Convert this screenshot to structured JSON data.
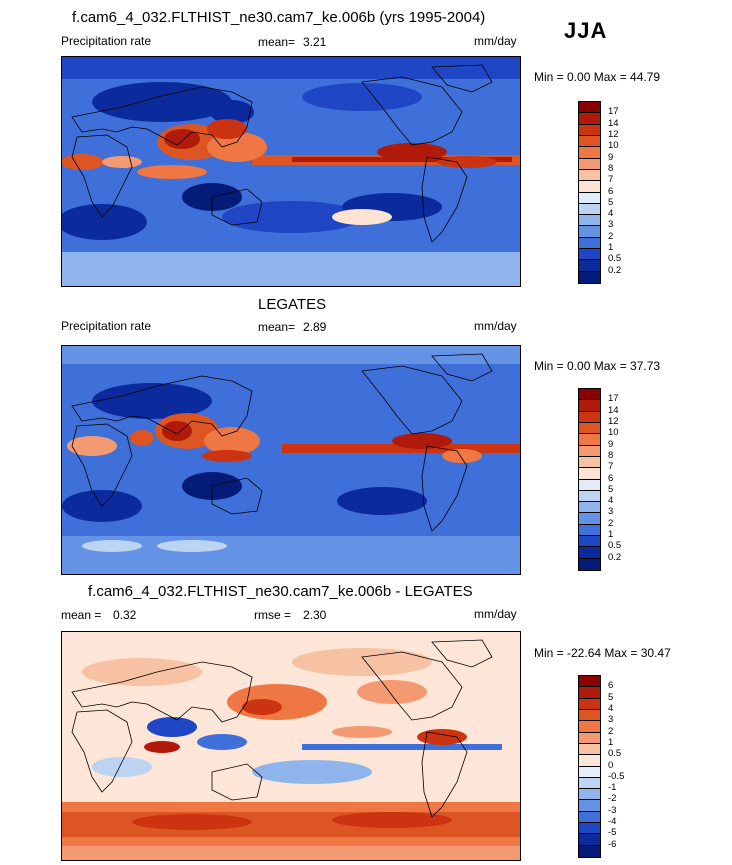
{
  "season": "JJA",
  "panels": [
    {
      "title": "f.cam6_4_032.FLTHIST_ne30.cam7_ke.006b (yrs 1995-2004)",
      "left_label": "Precipitation rate",
      "stat_label": "mean=",
      "stat_value": "3.21",
      "units": "mm/day",
      "minmax": "Min =   0.00 Max =  44.79",
      "kind": "abs",
      "ticks": [
        "17",
        "14",
        "12",
        "10",
        "9",
        "8",
        "7",
        "6",
        "5",
        "4",
        "3",
        "2",
        "1",
        "0.5",
        "0.2"
      ]
    },
    {
      "title": "LEGATES",
      "left_label": "Precipitation rate",
      "stat_label": "mean=",
      "stat_value": "2.89",
      "units": "mm/day",
      "minmax": "Min =   0.00 Max =  37.73",
      "kind": "abs",
      "ticks": [
        "17",
        "14",
        "12",
        "10",
        "9",
        "8",
        "7",
        "6",
        "5",
        "4",
        "3",
        "2",
        "1",
        "0.5",
        "0.2"
      ]
    },
    {
      "title": "f.cam6_4_032.FLTHIST_ne30.cam7_ke.006b - LEGATES",
      "left_label": "mean =",
      "left_value": "0.32",
      "stat_label": "rmse =",
      "stat_value": "2.30",
      "units": "mm/day",
      "minmax": "Min = -22.64 Max =  30.47",
      "kind": "diff",
      "ticks": [
        "6",
        "5",
        "4",
        "3",
        "2",
        "1",
        "0.5",
        "0",
        "-0.5",
        "-1",
        "-2",
        "-3",
        "-4",
        "-5",
        "-6"
      ]
    }
  ],
  "colors": {
    "abs": [
      "#8b0000",
      "#b01a0a",
      "#cc3311",
      "#dd5522",
      "#ee7744",
      "#f39a72",
      "#f7c2a4",
      "#fde3d2",
      "#e0ecf8",
      "#bcd3f2",
      "#8fb5ec",
      "#6493e6",
      "#3f6fd9",
      "#1f46c4",
      "#0b2b9c",
      "#041b78"
    ],
    "diff": [
      "#8b0000",
      "#b01a0a",
      "#cc3311",
      "#dd5522",
      "#ee7744",
      "#f39a72",
      "#f7c2a4",
      "#fde6d8",
      "#e6eefa",
      "#bcd3f2",
      "#8fb5ec",
      "#6493e6",
      "#3f6fd9",
      "#1f46c4",
      "#0b2b9c",
      "#041b78"
    ]
  }
}
